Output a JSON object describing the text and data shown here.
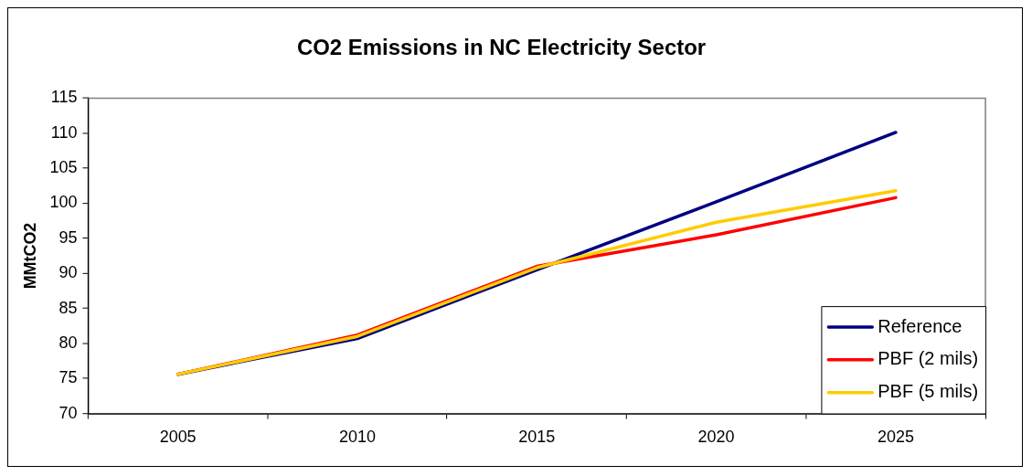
{
  "chart_data": {
    "type": "line",
    "title": "CO2 Emissions in NC Electricity Sector",
    "ylabel": "MMtCO2",
    "categories": [
      "2005",
      "2010",
      "2015",
      "2020",
      "2025"
    ],
    "series": [
      {
        "name": "Reference",
        "color": "#000080",
        "values": [
          75.6,
          80.7,
          90.5,
          100.2,
          110.1
        ]
      },
      {
        "name": "PBF (2 mils)",
        "color": "#ff0000",
        "values": [
          75.6,
          81.2,
          91.0,
          95.5,
          100.8
        ]
      },
      {
        "name": "PBF (5 mils)",
        "color": "#ffcc00",
        "values": [
          75.6,
          81.0,
          90.8,
          97.3,
          101.8
        ]
      }
    ],
    "ylim": [
      70,
      115
    ],
    "yticks": [
      70,
      75,
      80,
      85,
      90,
      95,
      100,
      105,
      110,
      115
    ],
    "grid": false,
    "legend": "bottom right",
    "marker": "none",
    "line_style": "solid"
  }
}
